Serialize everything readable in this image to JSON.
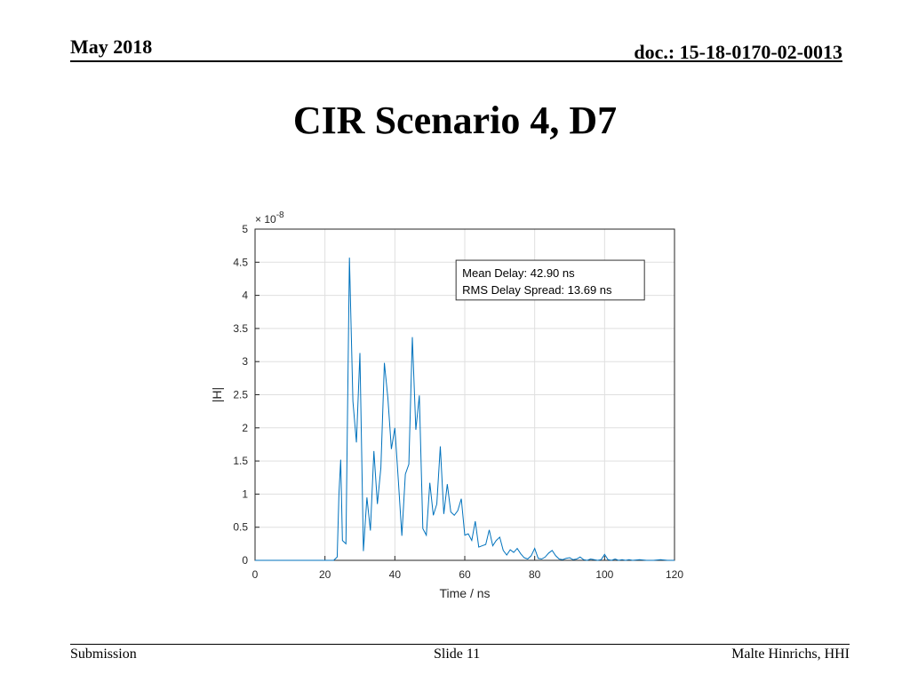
{
  "header": {
    "date": "May 2018",
    "doc_id": "doc.: 15-18-0170-02-0013"
  },
  "slide": {
    "title": "CIR Scenario 4, D7"
  },
  "footer": {
    "left": "Submission",
    "center": "Slide 11",
    "right": "Malte Hinrichs, HHI"
  },
  "chart_data": {
    "type": "line",
    "title": "",
    "xlabel": "Time / ns",
    "ylabel": "|H|",
    "y_exponent_label": "× 10",
    "y_exponent_power": "-8",
    "xlim": [
      0,
      120
    ],
    "ylim": [
      0,
      5
    ],
    "x_ticks": [
      0,
      20,
      40,
      60,
      80,
      100,
      120
    ],
    "y_ticks": [
      0,
      0.5,
      1,
      1.5,
      2,
      2.5,
      3,
      3.5,
      4,
      4.5,
      5
    ],
    "x_tick_labels": [
      "0",
      "20",
      "40",
      "60",
      "80",
      "100",
      "120"
    ],
    "y_tick_labels": [
      "0",
      "0.5",
      "1",
      "1.5",
      "2",
      "2.5",
      "3",
      "3.5",
      "4",
      "4.5",
      "5"
    ],
    "grid": true,
    "line_color": "#0072bd",
    "annotation": {
      "lines": [
        "Mean Delay: 42.90 ns",
        "RMS Delay Spread: 13.69 ns"
      ]
    },
    "series": [
      {
        "x": [
          0,
          10,
          22.5,
          23.5,
          24,
          24.5,
          25,
          26,
          27,
          28,
          29,
          30,
          31,
          32,
          33,
          34,
          35,
          36,
          37,
          38,
          39,
          40,
          41,
          42,
          43,
          44,
          45,
          46,
          47,
          48,
          49,
          50,
          51,
          52,
          53,
          54,
          55,
          56,
          57,
          58,
          59,
          60,
          61,
          62,
          63,
          64,
          65,
          66,
          67,
          68,
          69,
          70,
          71,
          72,
          73,
          74,
          75,
          76,
          77,
          78,
          79,
          80,
          81,
          82,
          83,
          84,
          85,
          86,
          87,
          88,
          89,
          90,
          91,
          92,
          93,
          94,
          95,
          96,
          97,
          98,
          99,
          100,
          101,
          102,
          103,
          104,
          105,
          106,
          107,
          108,
          110,
          112,
          114,
          116,
          118,
          120
        ],
        "y": [
          0,
          0,
          0,
          0.05,
          1.0,
          1.52,
          0.3,
          0.25,
          4.57,
          2.4,
          1.78,
          3.13,
          0.14,
          0.95,
          0.45,
          1.65,
          0.85,
          1.4,
          2.98,
          2.45,
          1.68,
          2.0,
          1.2,
          0.37,
          1.3,
          1.45,
          3.37,
          1.97,
          2.49,
          0.48,
          0.38,
          1.17,
          0.68,
          0.85,
          1.72,
          0.7,
          1.15,
          0.73,
          0.68,
          0.75,
          0.93,
          0.38,
          0.4,
          0.3,
          0.59,
          0.2,
          0.22,
          0.24,
          0.46,
          0.22,
          0.3,
          0.35,
          0.15,
          0.08,
          0.16,
          0.12,
          0.18,
          0.1,
          0.04,
          0.02,
          0.07,
          0.18,
          0.03,
          0.02,
          0.05,
          0.11,
          0.15,
          0.07,
          0.02,
          0.01,
          0.03,
          0.04,
          0.01,
          0.02,
          0.05,
          0.01,
          0.0,
          0.02,
          0.01,
          0.0,
          0.01,
          0.09,
          0.01,
          0.0,
          0.02,
          0.0,
          0.01,
          0.0,
          0.01,
          0.0,
          0.01,
          0.0,
          0.0,
          0.01,
          0.0,
          0.0
        ]
      }
    ]
  }
}
